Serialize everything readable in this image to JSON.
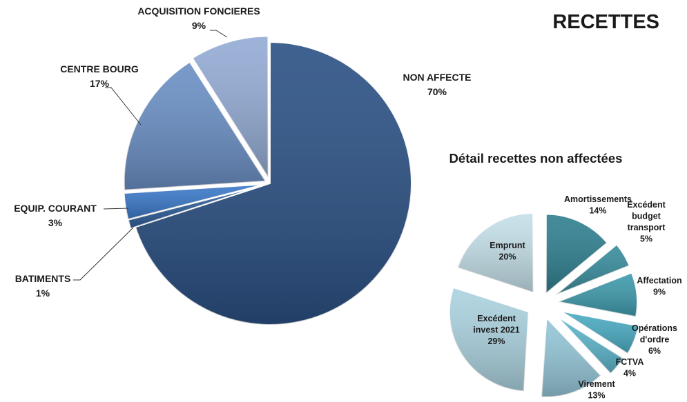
{
  "chart_data": [
    {
      "type": "pie",
      "title": "RECETTES",
      "slices": [
        {
          "label": "NON AFFECTE",
          "pct_label": "70%",
          "value": 70,
          "color": "#2a5083"
        },
        {
          "label": "BATIMENTS",
          "pct_label": "1%",
          "value": 1,
          "color": "#2e5f9c"
        },
        {
          "label": "EQUIP. COURANT",
          "pct_label": "3%",
          "value": 3,
          "color": "#3a78c8"
        },
        {
          "label": "CENTRE BOURG",
          "pct_label": "17%",
          "value": 17,
          "color": "#6a8fc4"
        },
        {
          "label": "ACQUISITION FONCIERES",
          "pct_label": "9%",
          "value": 9,
          "color": "#93abd4"
        }
      ]
    },
    {
      "type": "pie",
      "title": "Détail recettes non affectées",
      "slices": [
        {
          "label": "Amortissements",
          "pct_label": "14%",
          "value": 14,
          "color": "#2f7f8f"
        },
        {
          "label": "Excédent budget transport",
          "pct_label": "5%",
          "value": 5,
          "color": "#388c9d"
        },
        {
          "label": "Affectation",
          "pct_label": "9%",
          "value": 9,
          "color": "#3e9aac"
        },
        {
          "label": "Opérations d'ordre",
          "pct_label": "6%",
          "value": 6,
          "color": "#4aabc2"
        },
        {
          "label": "FCTVA",
          "pct_label": "4%",
          "value": 4,
          "color": "#5cb6cb"
        },
        {
          "label": "Virement",
          "pct_label": "13%",
          "value": 13,
          "color": "#94c6d7"
        },
        {
          "label": "Excédent invest 2021",
          "pct_label": "29%",
          "value": 29,
          "color": "#abd2df"
        },
        {
          "label": "Emprunt",
          "pct_label": "20%",
          "value": 20,
          "color": "#c4dfe8"
        }
      ]
    }
  ]
}
